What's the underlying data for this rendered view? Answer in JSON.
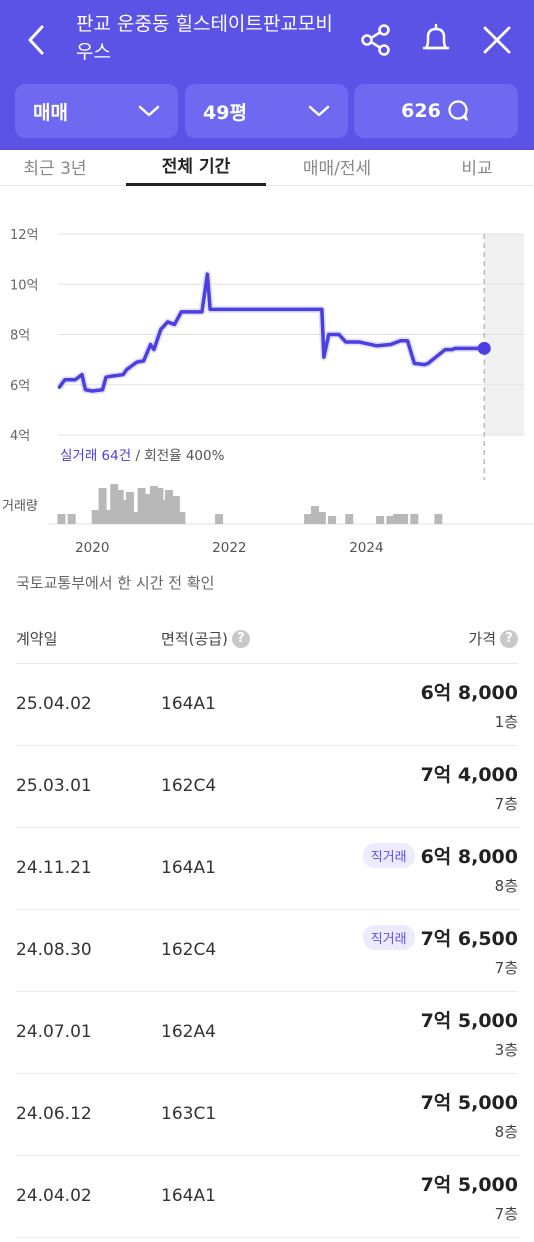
{
  "header": {
    "title": "판교 운중동 힐스테이트판교모비우스",
    "icons": {
      "back": "back-arrow-icon",
      "share": "share-icon",
      "bell": "bell-icon",
      "close": "close-icon"
    }
  },
  "filters": {
    "trade_type": "매매",
    "size": "49평",
    "comments": "626"
  },
  "tabs": [
    "최근 3년",
    "전체 기간",
    "매매/전세",
    "비교"
  ],
  "active_tab": 1,
  "chart_data": {
    "type": "line",
    "ylabels": [
      "12억",
      "10억",
      "8억",
      "6억",
      "4억"
    ],
    "ylim": [
      4,
      12
    ],
    "xlabels": [
      "2020",
      "2022",
      "2024"
    ],
    "xlim": [
      2019.5,
      2026.3
    ],
    "series": [
      {
        "color": "#4b3fe0",
        "x": [
          2019.52,
          2019.6,
          2019.75,
          2019.85,
          2019.9,
          2020.0,
          2020.15,
          2020.2,
          2020.3,
          2020.45,
          2020.5,
          2020.65,
          2020.75,
          2020.85,
          2020.9,
          2021.0,
          2021.1,
          2021.2,
          2021.3,
          2021.45,
          2021.6,
          2021.68,
          2021.72,
          2021.78,
          2022.0,
          2022.5,
          2023.0,
          2023.35,
          2023.38,
          2023.45,
          2023.6,
          2023.7,
          2023.9,
          2024.15,
          2024.35,
          2024.5,
          2024.6,
          2024.7,
          2024.85,
          2024.9,
          2025.15,
          2025.25,
          2025.3,
          2025.5,
          2025.7
        ],
        "y": [
          5.9,
          6.2,
          6.2,
          6.4,
          5.8,
          5.75,
          5.8,
          6.3,
          6.35,
          6.4,
          6.6,
          6.9,
          6.95,
          7.6,
          7.4,
          8.2,
          8.5,
          8.4,
          8.9,
          8.9,
          8.9,
          10.4,
          9.0,
          9.0,
          9.0,
          9.0,
          9.0,
          9.0,
          7.1,
          8.0,
          8.0,
          7.7,
          7.7,
          7.55,
          7.6,
          7.75,
          7.75,
          6.85,
          6.8,
          6.85,
          7.4,
          7.4,
          7.45,
          7.45,
          7.45
        ]
      }
    ],
    "current_value": 7.45,
    "volume_label": "거래량",
    "volume_bars": [
      {
        "x": 2019.55,
        "v": 0.25
      },
      {
        "x": 2019.7,
        "v": 0.25
      },
      {
        "x": 2020.05,
        "v": 0.35
      },
      {
        "x": 2020.15,
        "v": 0.9
      },
      {
        "x": 2020.25,
        "v": 0.35
      },
      {
        "x": 2020.32,
        "v": 1.0
      },
      {
        "x": 2020.4,
        "v": 0.85
      },
      {
        "x": 2020.48,
        "v": 0.6
      },
      {
        "x": 2020.55,
        "v": 0.8
      },
      {
        "x": 2020.65,
        "v": 0.3
      },
      {
        "x": 2020.72,
        "v": 0.9
      },
      {
        "x": 2020.82,
        "v": 0.75
      },
      {
        "x": 2020.9,
        "v": 0.95
      },
      {
        "x": 2020.98,
        "v": 0.9
      },
      {
        "x": 2021.05,
        "v": 0.6
      },
      {
        "x": 2021.12,
        "v": 0.85
      },
      {
        "x": 2021.22,
        "v": 0.7
      },
      {
        "x": 2021.3,
        "v": 0.3
      },
      {
        "x": 2021.85,
        "v": 0.25
      },
      {
        "x": 2023.15,
        "v": 0.25
      },
      {
        "x": 2023.25,
        "v": 0.45
      },
      {
        "x": 2023.35,
        "v": 0.3
      },
      {
        "x": 2023.5,
        "v": 0.2
      },
      {
        "x": 2023.75,
        "v": 0.25
      },
      {
        "x": 2024.2,
        "v": 0.2
      },
      {
        "x": 2024.35,
        "v": 0.2
      },
      {
        "x": 2024.45,
        "v": 0.25
      },
      {
        "x": 2024.55,
        "v": 0.25
      },
      {
        "x": 2024.7,
        "v": 0.25
      },
      {
        "x": 2025.05,
        "v": 0.25
      }
    ],
    "note_highlight": "실거래 64건",
    "note_rest": " / 회전율 400%",
    "grid": true
  },
  "source_note": "국토교통부에서 한 시간 전 확인",
  "table": {
    "headers": {
      "date": "계약일",
      "area": "면적(공급)",
      "price": "가격",
      "help": "?"
    },
    "rows": [
      {
        "date": "25.04.02",
        "area": "164A1",
        "badge": "",
        "price": "6억 8,000",
        "floor": "1층"
      },
      {
        "date": "25.03.01",
        "area": "162C4",
        "badge": "",
        "price": "7억 4,000",
        "floor": "7층"
      },
      {
        "date": "24.11.21",
        "area": "164A1",
        "badge": "직거래",
        "price": "6억 8,000",
        "floor": "8층"
      },
      {
        "date": "24.08.30",
        "area": "162C4",
        "badge": "직거래",
        "price": "7억 6,500",
        "floor": "7층"
      },
      {
        "date": "24.07.01",
        "area": "162A4",
        "badge": "",
        "price": "7억 5,000",
        "floor": "3층"
      },
      {
        "date": "24.06.12",
        "area": "163C1",
        "badge": "",
        "price": "7억 5,000",
        "floor": "8층"
      },
      {
        "date": "24.04.02",
        "area": "164A1",
        "badge": "",
        "price": "7억 5,000",
        "floor": "7층"
      }
    ]
  },
  "colors": {
    "brand": "#5b52e6",
    "line": "#4b3fe0",
    "volume": "#b8b8b8"
  }
}
